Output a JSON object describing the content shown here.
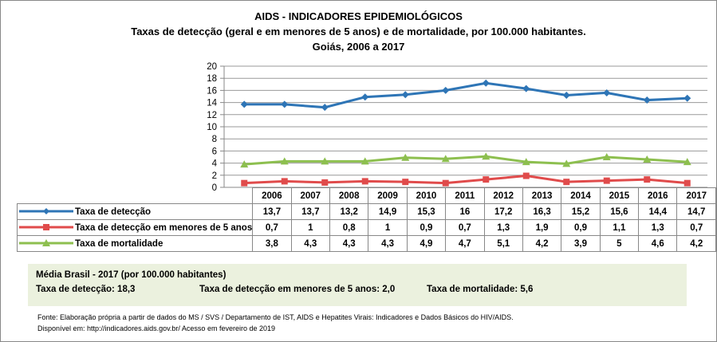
{
  "chart_data": {
    "type": "line",
    "title": [
      "AIDS - INDICADORES EPIDEMIOLÓGICOS",
      "Taxas de detecção (geral e em menores de 5 anos) e de mortalidade, por 100.000 habitantes.",
      "Goiás, 2006 a 2017"
    ],
    "categories": [
      "2006",
      "2007",
      "2008",
      "2009",
      "2010",
      "2011",
      "2012",
      "2013",
      "2014",
      "2015",
      "2016",
      "2017"
    ],
    "ylim": [
      0,
      20
    ],
    "yticks": [
      "0",
      "2",
      "4",
      "6",
      "8",
      "10",
      "12",
      "14",
      "16",
      "18",
      "20"
    ],
    "grid": true,
    "legend": "data-table",
    "series": [
      {
        "name": "Taxa de detecção",
        "color": "#2e75b6",
        "marker": "diamond",
        "values": [
          13.7,
          13.7,
          13.2,
          14.9,
          15.3,
          16,
          17.2,
          16.3,
          15.2,
          15.6,
          14.4,
          14.7
        ],
        "labels": [
          "13,7",
          "13,7",
          "13,2",
          "14,9",
          "15,3",
          "16",
          "17,2",
          "16,3",
          "15,2",
          "15,6",
          "14,4",
          "14,7"
        ]
      },
      {
        "name": "Taxa de detecção em menores de 5 anos",
        "color": "#e04b4b",
        "marker": "square",
        "values": [
          0.7,
          1,
          0.8,
          1,
          0.9,
          0.7,
          1.3,
          1.9,
          0.9,
          1.1,
          1.3,
          0.7
        ],
        "labels": [
          "0,7",
          "1",
          "0,8",
          "1",
          "0,9",
          "0,7",
          "1,3",
          "1,9",
          "0,9",
          "1,1",
          "1,3",
          "0,7"
        ]
      },
      {
        "name": "Taxa de mortalidade",
        "color": "#8dbf4f",
        "marker": "triangle",
        "values": [
          3.8,
          4.3,
          4.3,
          4.3,
          4.9,
          4.7,
          5.1,
          4.2,
          3.9,
          5,
          4.6,
          4.2
        ],
        "labels": [
          "3,8",
          "4,3",
          "4,3",
          "4,3",
          "4,9",
          "4,7",
          "5,1",
          "4,2",
          "3,9",
          "5",
          "4,6",
          "4,2"
        ]
      }
    ]
  },
  "average": {
    "heading": "Média Brasil - 2017  (por 100.000 habitantes)",
    "items": [
      "Taxa de detecção: 18,3",
      "Taxa  de detecção em menores de 5 anos:  2,0",
      "Taxa  de mortalidade: 5,6"
    ],
    "background": "#ebf1de"
  },
  "source": [
    "Fonte: Elaboração própria a partir de dados do MS / SVS / Departamento de IST, AIDS e Hepatites Virais: Indicadores e Dados Básicos do HIV/AIDS.",
    "Disponível em: http://indicadores.aids.gov.br/   Acesso em fevereiro de 2019"
  ]
}
